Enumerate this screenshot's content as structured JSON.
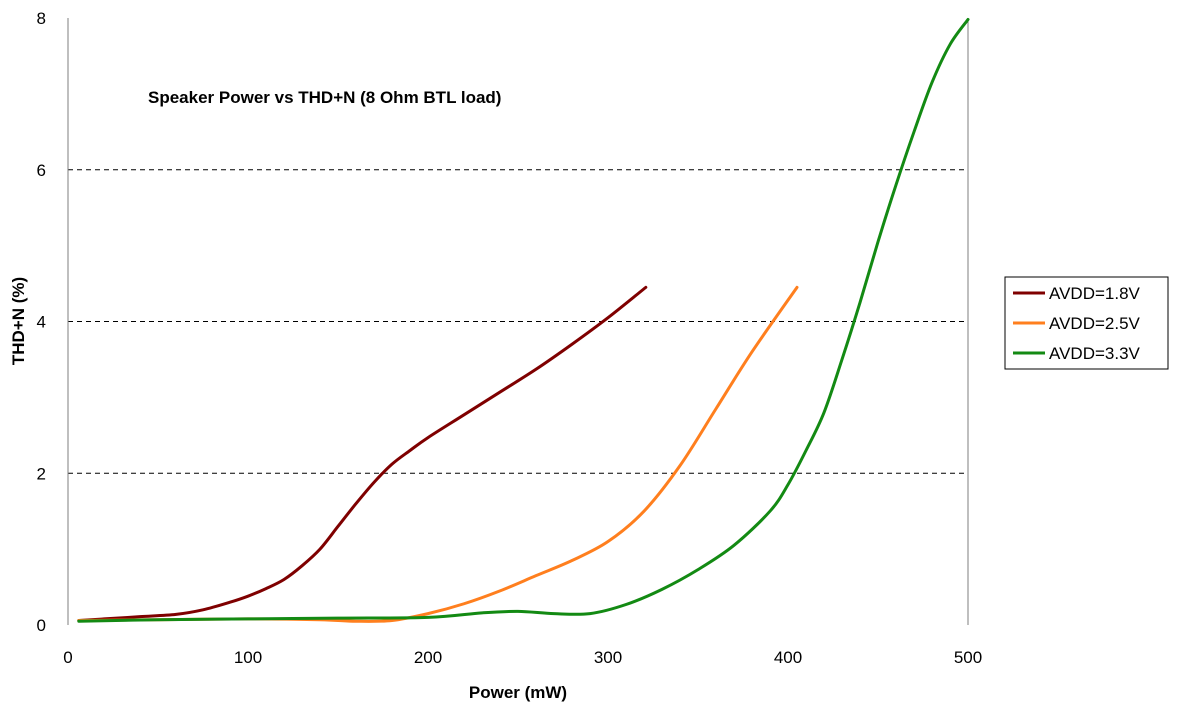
{
  "chart_data": {
    "type": "line",
    "title": "Speaker Power vs THD+N (8 Ohm BTL load)",
    "xlabel": "Power (mW)",
    "ylabel": "THD+N (%)",
    "xlim": [
      0,
      500
    ],
    "ylim": [
      0,
      8
    ],
    "xticks": [
      0,
      100,
      200,
      300,
      400,
      500
    ],
    "yticks": [
      0,
      2,
      4,
      6,
      8
    ],
    "grid": "horizontal dashed",
    "legend_position": "right",
    "series": [
      {
        "name": "AVDD=1.8V",
        "color": "#7f0000",
        "x": [
          6,
          20,
          40,
          60,
          75,
          90,
          100,
          110,
          120,
          130,
          140,
          150,
          160,
          170,
          180,
          190,
          200,
          220,
          240,
          260,
          280,
          300,
          321
        ],
        "y": [
          0.06,
          0.08,
          0.11,
          0.14,
          0.2,
          0.3,
          0.38,
          0.48,
          0.6,
          0.78,
          1.0,
          1.3,
          1.6,
          1.88,
          2.12,
          2.3,
          2.47,
          2.77,
          3.07,
          3.37,
          3.7,
          4.05,
          4.45
        ]
      },
      {
        "name": "AVDD=2.5V",
        "color": "#ff7f1e",
        "x": [
          6,
          50,
          100,
          140,
          160,
          180,
          200,
          220,
          240,
          260,
          280,
          300,
          320,
          340,
          360,
          380,
          405
        ],
        "y": [
          0.06,
          0.07,
          0.08,
          0.07,
          0.05,
          0.06,
          0.15,
          0.28,
          0.45,
          0.65,
          0.85,
          1.1,
          1.5,
          2.1,
          2.85,
          3.6,
          4.45
        ]
      },
      {
        "name": "AVDD=3.3V",
        "color": "#138a13",
        "x": [
          6,
          50,
          100,
          150,
          200,
          230,
          250,
          270,
          290,
          310,
          330,
          350,
          370,
          390,
          400,
          410,
          420,
          430,
          440,
          450,
          460,
          470,
          480,
          490,
          500
        ],
        "y": [
          0.05,
          0.07,
          0.08,
          0.09,
          0.1,
          0.16,
          0.18,
          0.15,
          0.15,
          0.27,
          0.47,
          0.73,
          1.05,
          1.5,
          1.85,
          2.3,
          2.8,
          3.5,
          4.25,
          5.05,
          5.8,
          6.5,
          7.15,
          7.65,
          7.98
        ]
      }
    ]
  }
}
